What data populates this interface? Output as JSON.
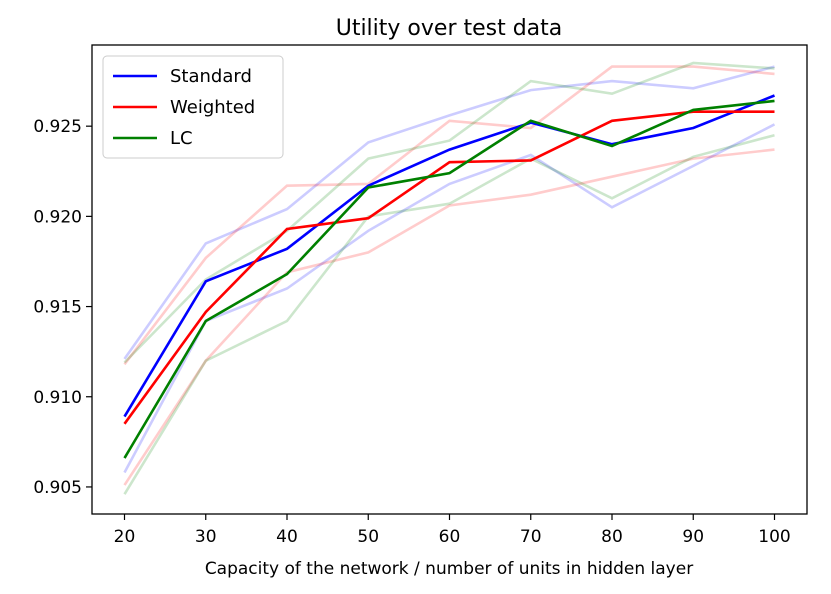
{
  "chart_data": {
    "type": "line",
    "title": "Utility over test data",
    "xlabel": "Capacity of the network / number of units in hidden layer",
    "ylabel": "",
    "x": [
      20,
      30,
      40,
      50,
      60,
      70,
      80,
      90,
      100
    ],
    "xlim": [
      16,
      104
    ],
    "ylim": [
      0.9035,
      0.9295
    ],
    "xticks": [
      "20",
      "30",
      "40",
      "50",
      "60",
      "70",
      "80",
      "90",
      "100"
    ],
    "yticks": [
      "0.905",
      "0.910",
      "0.915",
      "0.920",
      "0.925"
    ],
    "ytick_values": [
      0.905,
      0.91,
      0.915,
      0.92,
      0.925
    ],
    "grid": false,
    "legend": "top-left",
    "series": [
      {
        "name": "Standard",
        "color": "#0000ff",
        "values": [
          0.9089,
          0.9164,
          0.9182,
          0.9217,
          0.9237,
          0.9252,
          0.924,
          0.9249,
          0.9267
        ]
      },
      {
        "name": "Weighted",
        "color": "#ff0000",
        "values": [
          0.9085,
          0.9147,
          0.9193,
          0.9199,
          0.923,
          0.9231,
          0.9253,
          0.9258,
          0.9258
        ]
      },
      {
        "name": "LC",
        "color": "#008000",
        "values": [
          0.9066,
          0.9142,
          0.9168,
          0.9216,
          0.9224,
          0.9253,
          0.9239,
          0.9259,
          0.9264
        ]
      }
    ],
    "band_series": [
      {
        "color": "#0000ff",
        "values": [
          0.9121,
          0.9185,
          0.9204,
          0.9241,
          0.9256,
          0.927,
          0.9275,
          0.9271,
          0.9283
        ]
      },
      {
        "color": "#0000ff",
        "values": [
          0.9058,
          0.9142,
          0.916,
          0.9192,
          0.9218,
          0.9234,
          0.9205,
          0.9228,
          0.9251
        ]
      },
      {
        "color": "#ff0000",
        "values": [
          0.9118,
          0.9177,
          0.9217,
          0.9218,
          0.9253,
          0.9249,
          0.9283,
          0.9283,
          0.9279
        ]
      },
      {
        "color": "#ff0000",
        "values": [
          0.9051,
          0.912,
          0.9169,
          0.918,
          0.9206,
          0.9212,
          0.9222,
          0.9232,
          0.9237
        ]
      },
      {
        "color": "#008000",
        "values": [
          0.9119,
          0.9165,
          0.9192,
          0.9232,
          0.9242,
          0.9275,
          0.9268,
          0.9285,
          0.9282
        ]
      },
      {
        "color": "#008000",
        "values": [
          0.9046,
          0.912,
          0.9142,
          0.92,
          0.9207,
          0.9232,
          0.921,
          0.9233,
          0.9245
        ]
      }
    ]
  }
}
